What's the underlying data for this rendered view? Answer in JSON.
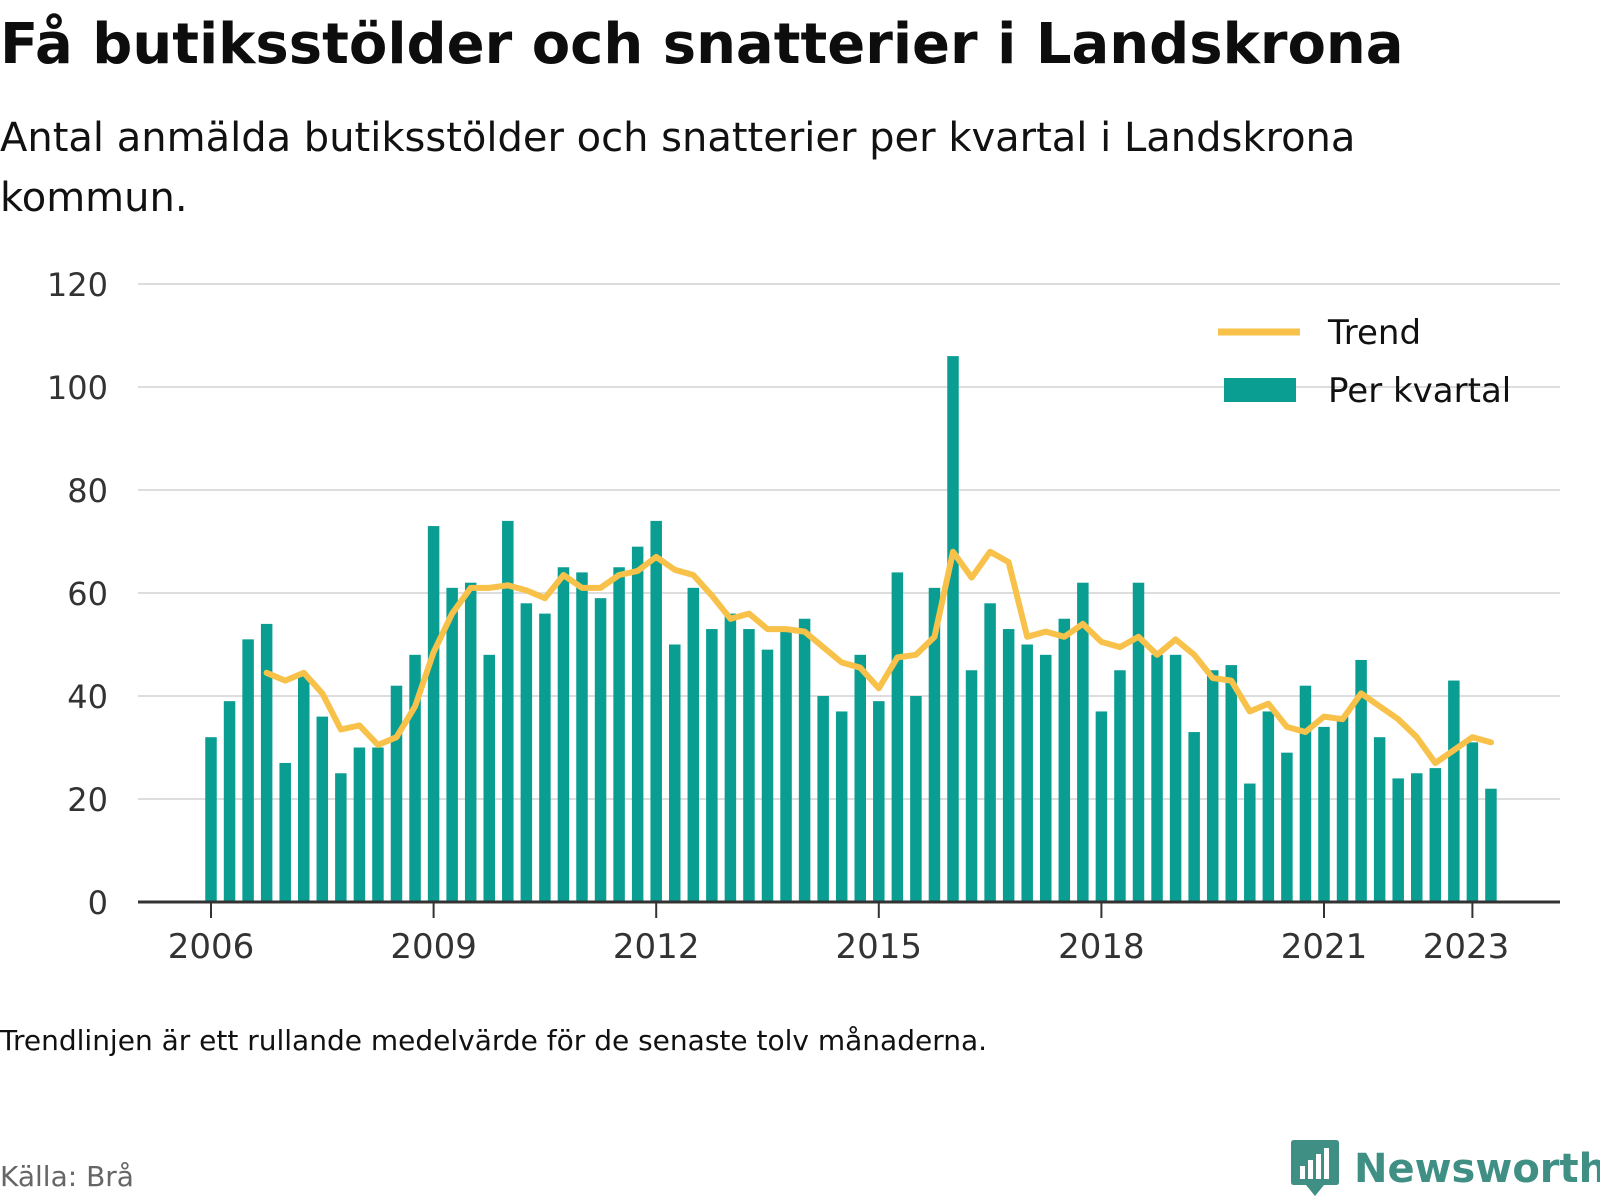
{
  "title": "Få butiksstölder och snatterier i Landskrona",
  "subtitle": "Antal anmälda butiksstölder och snatterier per kvartal i Landskrona kommun.",
  "note": "Trendlinjen är ett rullande medelvärde för de senaste tolv månaderna.",
  "source": "Källa: Brå",
  "brand": "Newsworthy",
  "colors": {
    "bar": "#0a9e93",
    "trend": "#f7c14a",
    "grid": "#dddddd",
    "axis": "#333333",
    "brand": "#3f8f84"
  },
  "chart_data": {
    "type": "bar",
    "x_start": "2006 Q1",
    "x_ticks": [
      "2006",
      "2009",
      "2012",
      "2015",
      "2018",
      "2021",
      "2023"
    ],
    "y_ticks": [
      0,
      20,
      40,
      60,
      80,
      100,
      120
    ],
    "ylim": [
      0,
      120
    ],
    "grid": true,
    "legend_position": "top-right",
    "series": [
      {
        "name": "Per kvartal",
        "type": "bar",
        "values": [
          32,
          39,
          51,
          54,
          27,
          44,
          36,
          25,
          30,
          30,
          42,
          48,
          73,
          61,
          62,
          48,
          74,
          58,
          56,
          65,
          64,
          59,
          65,
          69,
          74,
          50,
          61,
          53,
          56,
          53,
          49,
          53,
          55,
          40,
          37,
          48,
          39,
          64,
          40,
          61,
          106,
          45,
          58,
          53,
          50,
          48,
          55,
          62,
          37,
          45,
          62,
          48,
          48,
          33,
          45,
          46,
          23,
          37,
          29,
          42,
          34,
          36,
          47,
          32,
          24,
          25,
          26,
          43,
          31,
          22
        ]
      },
      {
        "name": "Trend",
        "type": "line",
        "values": [
          null,
          null,
          null,
          44.5,
          43.0,
          44.5,
          40.5,
          33.5,
          34.3,
          30.5,
          32.0,
          38.0,
          48.5,
          56.0,
          61.0,
          61.0,
          61.5,
          60.5,
          59.0,
          63.5,
          61.0,
          61.0,
          63.5,
          64.3,
          67.0,
          64.5,
          63.5,
          59.5,
          55.0,
          56.0,
          53.0,
          53.0,
          52.5,
          49.5,
          46.5,
          45.5,
          41.5,
          47.5,
          48.0,
          51.5,
          68.0,
          63.0,
          68.0,
          66.0,
          51.5,
          52.5,
          51.5,
          54.0,
          50.5,
          49.5,
          51.5,
          48.0,
          51.0,
          48.0,
          43.5,
          43.0,
          37.0,
          38.5,
          34.0,
          33.0,
          36.0,
          35.5,
          40.5,
          38.0,
          35.5,
          32.0,
          27.0,
          29.5,
          32.0,
          31.0
        ]
      }
    ]
  }
}
